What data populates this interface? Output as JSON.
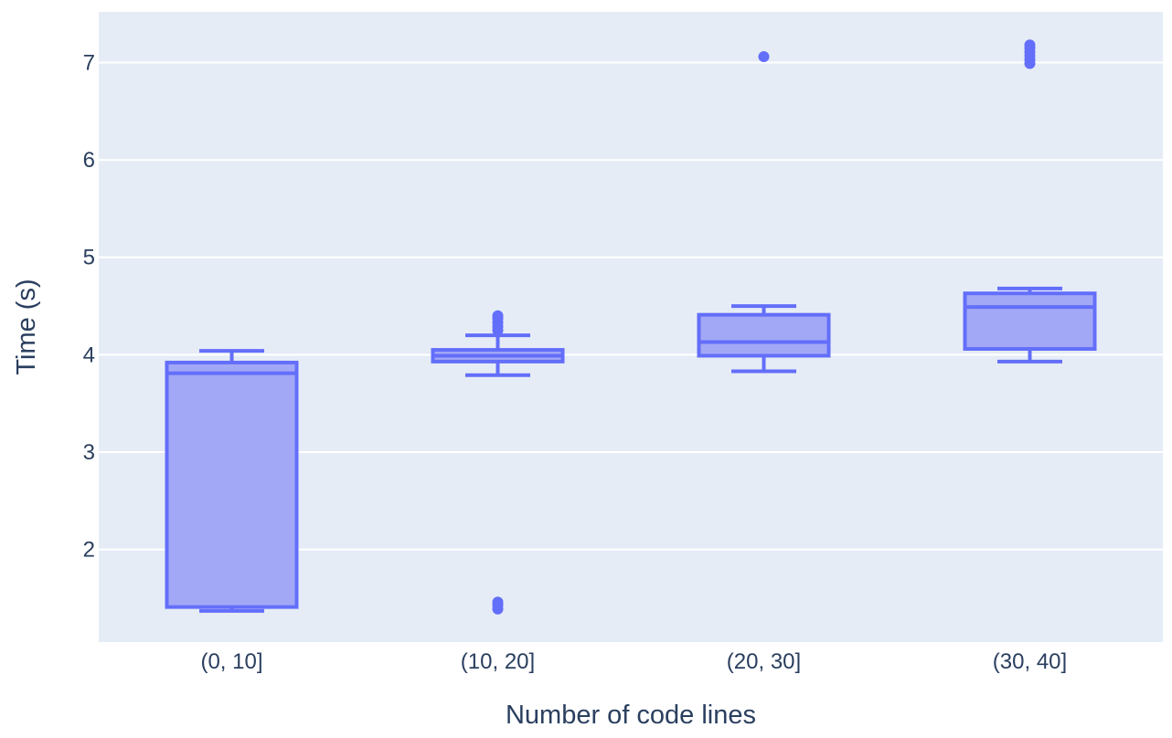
{
  "colors": {
    "plot_background": "#e5ecf6",
    "grid": "#ffffff",
    "box_line": "#636efa",
    "box_fill": "#a2a8f5",
    "text": "#2a3f5f"
  },
  "chart_data": {
    "type": "box",
    "xlabel": "Number of code lines",
    "ylabel": "Time (s)",
    "ylim": [
      1.05,
      7.52
    ],
    "yticks": [
      2,
      3,
      4,
      5,
      6,
      7
    ],
    "grid": true,
    "categories": [
      "(0, 10]",
      "(10, 20]",
      "(20, 30]",
      "(30, 40]"
    ],
    "boxes": [
      {
        "category": "(0, 10]",
        "lower_whisker": 1.37,
        "q1": 1.41,
        "median": 3.81,
        "q3": 3.92,
        "upper_whisker": 4.04,
        "outliers": []
      },
      {
        "category": "(10, 20]",
        "lower_whisker": 3.79,
        "q1": 3.93,
        "median": 3.99,
        "q3": 4.05,
        "upper_whisker": 4.2,
        "outliers": [
          4.25,
          4.29,
          4.33,
          4.37,
          4.4,
          1.39,
          1.43,
          1.46
        ]
      },
      {
        "category": "(20, 30]",
        "lower_whisker": 3.83,
        "q1": 3.99,
        "median": 4.13,
        "q3": 4.41,
        "upper_whisker": 4.5,
        "outliers": [
          7.06
        ]
      },
      {
        "category": "(30, 40]",
        "lower_whisker": 3.93,
        "q1": 4.06,
        "median": 4.49,
        "q3": 4.63,
        "upper_whisker": 4.68,
        "outliers": [
          6.99,
          7.03,
          7.07,
          7.11,
          7.15,
          7.18
        ]
      }
    ]
  }
}
